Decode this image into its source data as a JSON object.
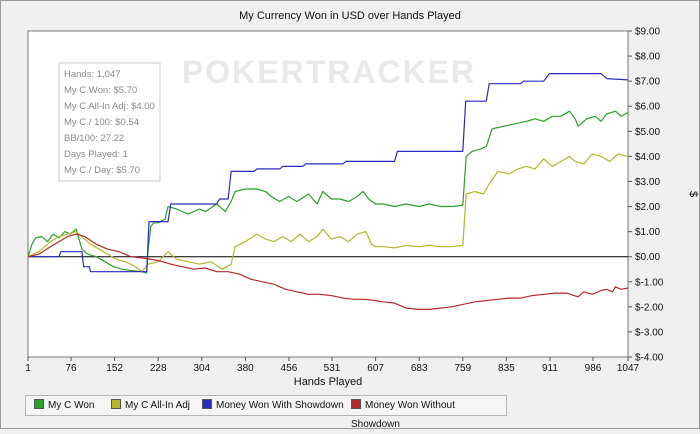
{
  "chart_data": {
    "type": "line",
    "title": "My Currency Won in USD over Hands Played",
    "xlabel": "Hands Played",
    "ylabel": "$",
    "xlim": [
      1,
      1047
    ],
    "ylim": [
      -4,
      9
    ],
    "x_ticks": [
      1,
      76,
      152,
      228,
      304,
      380,
      456,
      531,
      607,
      683,
      759,
      835,
      911,
      986,
      1047
    ],
    "y_ticks": [
      {
        "value": 9,
        "label": "$9.00"
      },
      {
        "value": 8,
        "label": "$8.00"
      },
      {
        "value": 7,
        "label": "$7.00"
      },
      {
        "value": 6,
        "label": "$6.00"
      },
      {
        "value": 5,
        "label": "$5.00"
      },
      {
        "value": 4,
        "label": "$4.00"
      },
      {
        "value": 3,
        "label": "$3.00"
      },
      {
        "value": 2,
        "label": "$2.00"
      },
      {
        "value": 1,
        "label": "$1.00"
      },
      {
        "value": 0,
        "label": "$0.00"
      },
      {
        "value": -1,
        "label": "$-1.00"
      },
      {
        "value": -2,
        "label": "$-2.00"
      },
      {
        "value": -3,
        "label": "$-3.00"
      },
      {
        "value": -4,
        "label": "$-4.00"
      }
    ],
    "y_axis_side": "right",
    "grid": false,
    "legend_position": "bottom",
    "watermark": "POKERTRACKER",
    "stats_box": [
      "Hands: 1,047",
      "My C Won: $5.70",
      "My C All-In Adj: $4.00",
      "My C / 100: $0.54",
      "BB/100: 27.22",
      "Days Played: 1",
      "My C / Day: $5.70"
    ],
    "series": [
      {
        "name": "My C Won",
        "color": "#2aa12a",
        "points": [
          [
            1,
            0
          ],
          [
            8,
            0.5
          ],
          [
            14,
            0.75
          ],
          [
            25,
            0.8
          ],
          [
            35,
            0.6
          ],
          [
            45,
            0.9
          ],
          [
            55,
            0.75
          ],
          [
            65,
            1.0
          ],
          [
            75,
            0.9
          ],
          [
            85,
            1.1
          ],
          [
            95,
            0.3
          ],
          [
            105,
            0.1
          ],
          [
            120,
            0.0
          ],
          [
            135,
            -0.2
          ],
          [
            150,
            -0.4
          ],
          [
            165,
            -0.5
          ],
          [
            180,
            -0.55
          ],
          [
            200,
            -0.6
          ],
          [
            208,
            -0.65
          ],
          [
            210,
            0.2
          ],
          [
            215,
            1.2
          ],
          [
            220,
            1.35
          ],
          [
            228,
            1.35
          ],
          [
            240,
            1.5
          ],
          [
            245,
            2.0
          ],
          [
            260,
            1.9
          ],
          [
            280,
            1.7
          ],
          [
            300,
            1.9
          ],
          [
            310,
            1.8
          ],
          [
            330,
            2.1
          ],
          [
            345,
            1.8
          ],
          [
            355,
            2.2
          ],
          [
            362,
            2.6
          ],
          [
            380,
            2.7
          ],
          [
            400,
            2.7
          ],
          [
            415,
            2.6
          ],
          [
            425,
            2.4
          ],
          [
            440,
            2.2
          ],
          [
            455,
            2.4
          ],
          [
            470,
            2.2
          ],
          [
            490,
            2.5
          ],
          [
            505,
            2.1
          ],
          [
            515,
            2.6
          ],
          [
            530,
            2.3
          ],
          [
            545,
            2.3
          ],
          [
            560,
            2.2
          ],
          [
            575,
            2.4
          ],
          [
            585,
            2.6
          ],
          [
            595,
            2.3
          ],
          [
            607,
            2.1
          ],
          [
            620,
            2.1
          ],
          [
            640,
            2.0
          ],
          [
            660,
            2.1
          ],
          [
            683,
            2.0
          ],
          [
            700,
            2.1
          ],
          [
            720,
            2.0
          ],
          [
            740,
            2.0
          ],
          [
            759,
            2.05
          ],
          [
            765,
            4.0
          ],
          [
            775,
            4.2
          ],
          [
            790,
            4.3
          ],
          [
            800,
            4.4
          ],
          [
            810,
            5.1
          ],
          [
            830,
            5.2
          ],
          [
            850,
            5.3
          ],
          [
            870,
            5.4
          ],
          [
            885,
            5.5
          ],
          [
            900,
            5.4
          ],
          [
            915,
            5.6
          ],
          [
            930,
            5.6
          ],
          [
            945,
            5.8
          ],
          [
            955,
            5.5
          ],
          [
            960,
            5.2
          ],
          [
            975,
            5.5
          ],
          [
            990,
            5.6
          ],
          [
            1000,
            5.4
          ],
          [
            1010,
            5.7
          ],
          [
            1025,
            5.8
          ],
          [
            1035,
            5.6
          ],
          [
            1047,
            5.75
          ]
        ]
      },
      {
        "name": "My C All-In Adj",
        "color": "#b5b52a",
        "points": [
          [
            1,
            0
          ],
          [
            20,
            0.2
          ],
          [
            40,
            0.6
          ],
          [
            55,
            0.8
          ],
          [
            70,
            0.9
          ],
          [
            85,
            1.0
          ],
          [
            95,
            0.8
          ],
          [
            110,
            0.5
          ],
          [
            125,
            0.3
          ],
          [
            140,
            0.1
          ],
          [
            155,
            -0.1
          ],
          [
            170,
            -0.2
          ],
          [
            185,
            -0.35
          ],
          [
            200,
            -0.6
          ],
          [
            210,
            -0.3
          ],
          [
            228,
            -0.2
          ],
          [
            245,
            0.2
          ],
          [
            260,
            -0.1
          ],
          [
            280,
            -0.2
          ],
          [
            300,
            -0.3
          ],
          [
            320,
            -0.2
          ],
          [
            340,
            -0.5
          ],
          [
            355,
            -0.3
          ],
          [
            362,
            0.4
          ],
          [
            380,
            0.6
          ],
          [
            400,
            0.9
          ],
          [
            415,
            0.7
          ],
          [
            430,
            0.6
          ],
          [
            445,
            0.8
          ],
          [
            460,
            0.6
          ],
          [
            475,
            0.9
          ],
          [
            490,
            0.6
          ],
          [
            505,
            0.8
          ],
          [
            515,
            1.1
          ],
          [
            530,
            0.7
          ],
          [
            545,
            0.8
          ],
          [
            560,
            0.6
          ],
          [
            575,
            0.9
          ],
          [
            590,
            1.0
          ],
          [
            600,
            0.5
          ],
          [
            607,
            0.4
          ],
          [
            620,
            0.4
          ],
          [
            640,
            0.35
          ],
          [
            660,
            0.45
          ],
          [
            683,
            0.4
          ],
          [
            700,
            0.45
          ],
          [
            720,
            0.4
          ],
          [
            740,
            0.4
          ],
          [
            759,
            0.45
          ],
          [
            765,
            2.5
          ],
          [
            780,
            2.6
          ],
          [
            795,
            2.5
          ],
          [
            805,
            2.9
          ],
          [
            820,
            3.4
          ],
          [
            840,
            3.3
          ],
          [
            855,
            3.5
          ],
          [
            870,
            3.6
          ],
          [
            885,
            3.5
          ],
          [
            900,
            3.9
          ],
          [
            915,
            3.6
          ],
          [
            930,
            3.8
          ],
          [
            945,
            4.0
          ],
          [
            955,
            3.8
          ],
          [
            970,
            3.7
          ],
          [
            985,
            4.1
          ],
          [
            1000,
            4.0
          ],
          [
            1015,
            3.8
          ],
          [
            1030,
            4.1
          ],
          [
            1047,
            4.0
          ]
        ]
      },
      {
        "name": "Money Won With Showdown",
        "color": "#2a2ac0",
        "points": [
          [
            1,
            0
          ],
          [
            10,
            0
          ],
          [
            55,
            0
          ],
          [
            58,
            0.2
          ],
          [
            95,
            0.2
          ],
          [
            98,
            -0.4
          ],
          [
            108,
            -0.4
          ],
          [
            110,
            -0.6
          ],
          [
            150,
            -0.6
          ],
          [
            190,
            -0.6
          ],
          [
            208,
            -0.6
          ],
          [
            212,
            1.4
          ],
          [
            228,
            1.4
          ],
          [
            245,
            1.4
          ],
          [
            250,
            2.1
          ],
          [
            330,
            2.1
          ],
          [
            335,
            2.3
          ],
          [
            350,
            2.3
          ],
          [
            355,
            3.4
          ],
          [
            395,
            3.4
          ],
          [
            400,
            3.5
          ],
          [
            440,
            3.5
          ],
          [
            445,
            3.6
          ],
          [
            480,
            3.6
          ],
          [
            485,
            3.7
          ],
          [
            550,
            3.7
          ],
          [
            555,
            3.8
          ],
          [
            640,
            3.8
          ],
          [
            645,
            4.2
          ],
          [
            700,
            4.2
          ],
          [
            759,
            4.2
          ],
          [
            764,
            6.2
          ],
          [
            800,
            6.2
          ],
          [
            805,
            6.9
          ],
          [
            860,
            6.9
          ],
          [
            865,
            7.0
          ],
          [
            900,
            7.0
          ],
          [
            910,
            7.3
          ],
          [
            1000,
            7.3
          ],
          [
            1010,
            7.1
          ],
          [
            1047,
            7.05
          ]
        ]
      },
      {
        "name": "Money Won Without Showdown",
        "color": "#b22a2a",
        "points": [
          [
            1,
            0
          ],
          [
            20,
            0.1
          ],
          [
            40,
            0.4
          ],
          [
            55,
            0.6
          ],
          [
            70,
            0.8
          ],
          [
            85,
            0.9
          ],
          [
            100,
            0.8
          ],
          [
            120,
            0.5
          ],
          [
            140,
            0.3
          ],
          [
            160,
            0.2
          ],
          [
            180,
            0.0
          ],
          [
            200,
            -0.05
          ],
          [
            228,
            -0.15
          ],
          [
            250,
            -0.3
          ],
          [
            270,
            -0.4
          ],
          [
            290,
            -0.5
          ],
          [
            310,
            -0.45
          ],
          [
            330,
            -0.6
          ],
          [
            350,
            -0.6
          ],
          [
            370,
            -0.7
          ],
          [
            390,
            -0.9
          ],
          [
            410,
            -1.0
          ],
          [
            430,
            -1.1
          ],
          [
            450,
            -1.3
          ],
          [
            470,
            -1.4
          ],
          [
            490,
            -1.5
          ],
          [
            510,
            -1.5
          ],
          [
            530,
            -1.55
          ],
          [
            550,
            -1.65
          ],
          [
            570,
            -1.7
          ],
          [
            590,
            -1.7
          ],
          [
            607,
            -1.75
          ],
          [
            620,
            -1.8
          ],
          [
            640,
            -1.85
          ],
          [
            660,
            -2.05
          ],
          [
            683,
            -2.1
          ],
          [
            700,
            -2.1
          ],
          [
            720,
            -2.05
          ],
          [
            740,
            -2.0
          ],
          [
            760,
            -1.9
          ],
          [
            780,
            -1.8
          ],
          [
            800,
            -1.75
          ],
          [
            820,
            -1.7
          ],
          [
            840,
            -1.65
          ],
          [
            860,
            -1.65
          ],
          [
            880,
            -1.55
          ],
          [
            900,
            -1.5
          ],
          [
            920,
            -1.45
          ],
          [
            940,
            -1.45
          ],
          [
            960,
            -1.6
          ],
          [
            970,
            -1.4
          ],
          [
            985,
            -1.5
          ],
          [
            1000,
            -1.35
          ],
          [
            1010,
            -1.3
          ],
          [
            1020,
            -1.4
          ],
          [
            1025,
            -1.2
          ],
          [
            1035,
            -1.3
          ],
          [
            1047,
            -1.25
          ]
        ]
      }
    ]
  }
}
